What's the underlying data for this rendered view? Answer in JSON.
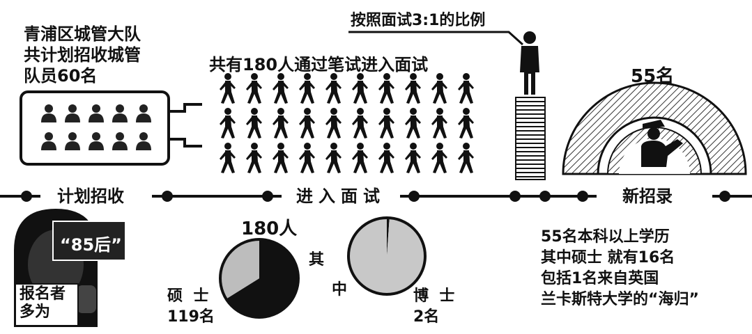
{
  "plan": {
    "lines": [
      "青浦区城管大队",
      "共计划招收城管",
      "队员60名"
    ],
    "label": "计划招收",
    "bubble_text": "“85后”",
    "sign_text": [
      "报名者",
      "多为"
    ]
  },
  "interview": {
    "heading": "共有180人通过笔试进入面试",
    "label": "进入面试",
    "ratio_text": "按照面试3:1的比例",
    "total": "180人",
    "among": [
      "其",
      "中"
    ],
    "masters_label": "硕  士",
    "masters_count": "119名",
    "phd_label": "博  士",
    "phd_count": "2名"
  },
  "hire": {
    "circle_label": "55名",
    "label": "新招录",
    "notes": [
      "55名本科以上学历",
      "其中硕士 就有16名",
      "包括1名来自英国",
      "兰卡斯特大学的“海归”"
    ]
  },
  "chart_data": [
    {
      "type": "pie",
      "title": "",
      "total": 180,
      "slices": [
        {
          "name": "硕士",
          "value": 119,
          "color": "#111111"
        },
        {
          "name": "",
          "value": 61,
          "color": "#bdbdbd"
        }
      ]
    },
    {
      "type": "pie",
      "title": "",
      "total": 180,
      "slices": [
        {
          "name": "博士",
          "value": 2,
          "color": "#111111"
        },
        {
          "name": "",
          "value": 178,
          "color": "#c8c8c8"
        }
      ]
    }
  ],
  "colors": {
    "ink": "#111111",
    "gray": "#bdbdbd",
    "light": "#c8c8c8"
  },
  "icons": [
    "person-icon",
    "runner-icon",
    "podium-stack-icon",
    "city-officer-icon",
    "hooded-figure-icon"
  ]
}
